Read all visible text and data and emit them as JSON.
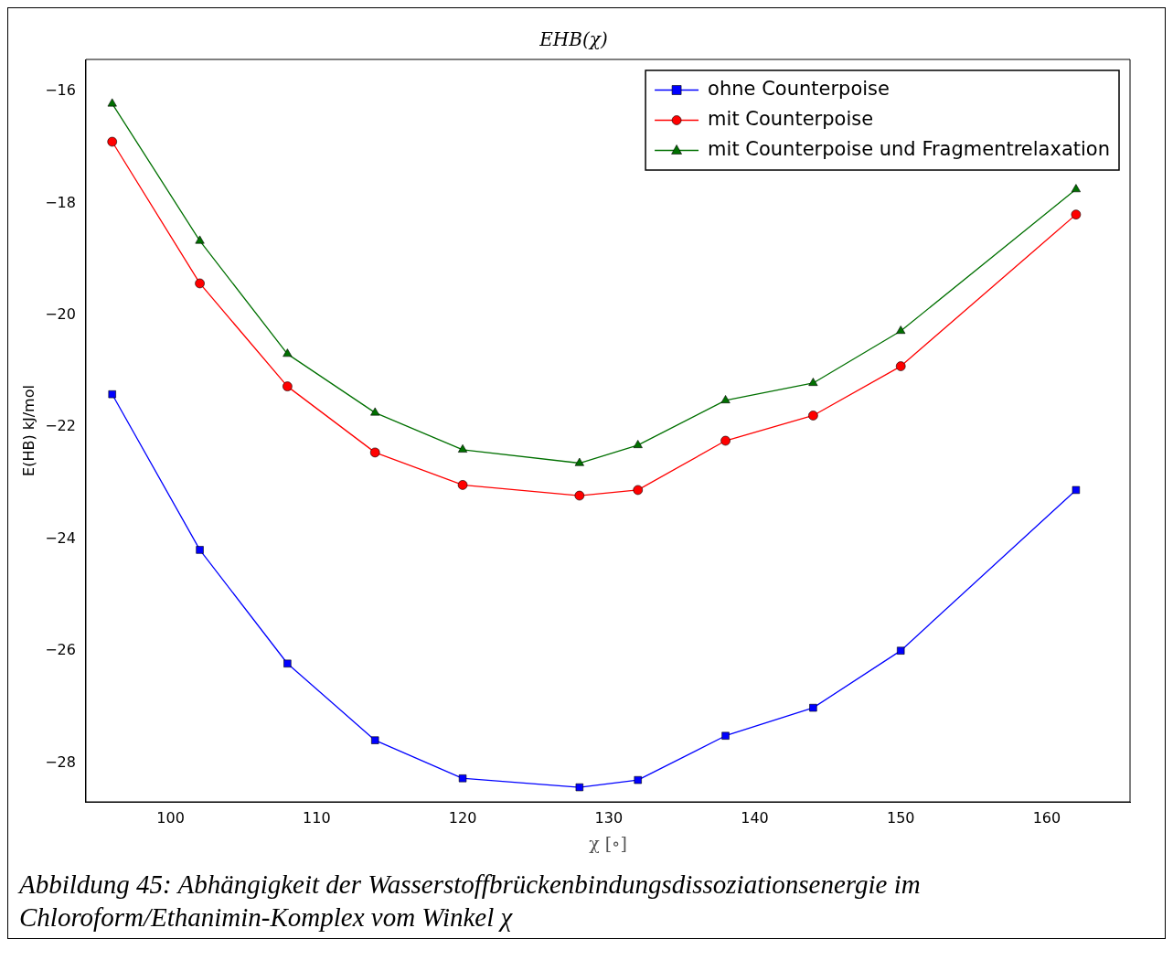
{
  "chart_data": {
    "type": "line",
    "title": "EHB(χ)",
    "xlabel": "χ [∘]",
    "ylabel": "E(HB) kJ/mol",
    "annotations": [
      "Abbildung 45: Abhängigkeit der Wasserstoffbrückenbindungsdissoziationsenergie im Chloroform/Ethanimin-Komplex vom Winkel χ"
    ],
    "x": [
      96,
      102,
      108,
      114,
      120,
      128,
      132,
      138,
      144,
      150,
      162
    ],
    "series": [
      {
        "name": "ohne Counterpoise",
        "color": "#0000ff",
        "marker": "square",
        "values": [
          -21.41,
          -24.19,
          -26.22,
          -27.59,
          -28.27,
          -28.43,
          -28.3,
          -27.51,
          -27.01,
          -25.99,
          -23.12
        ]
      },
      {
        "name": "mit Counterpoise",
        "color": "#ff0000",
        "marker": "circle",
        "values": [
          -16.9,
          -19.43,
          -21.27,
          -22.45,
          -23.03,
          -23.22,
          -23.12,
          -22.24,
          -21.79,
          -20.91,
          -18.2
        ]
      },
      {
        "name": "mit Counterpoise und Fragmentrelaxation",
        "color": "#007000",
        "marker": "triangle",
        "values": [
          -16.22,
          -18.67,
          -20.69,
          -21.74,
          -22.4,
          -22.64,
          -22.32,
          -21.52,
          -21.21,
          -20.28,
          -17.75
        ]
      }
    ],
    "xlim": [
      94.2,
      165.7
    ],
    "xticks": [
      100,
      110,
      120,
      130,
      140,
      150,
      160
    ],
    "ylim": [
      -28.69,
      -15.43
    ],
    "yticks": [
      -28,
      -26,
      -24,
      -22,
      -20,
      -18,
      -16
    ],
    "grid": false,
    "legend": "top right",
    "line_style": "solid"
  }
}
